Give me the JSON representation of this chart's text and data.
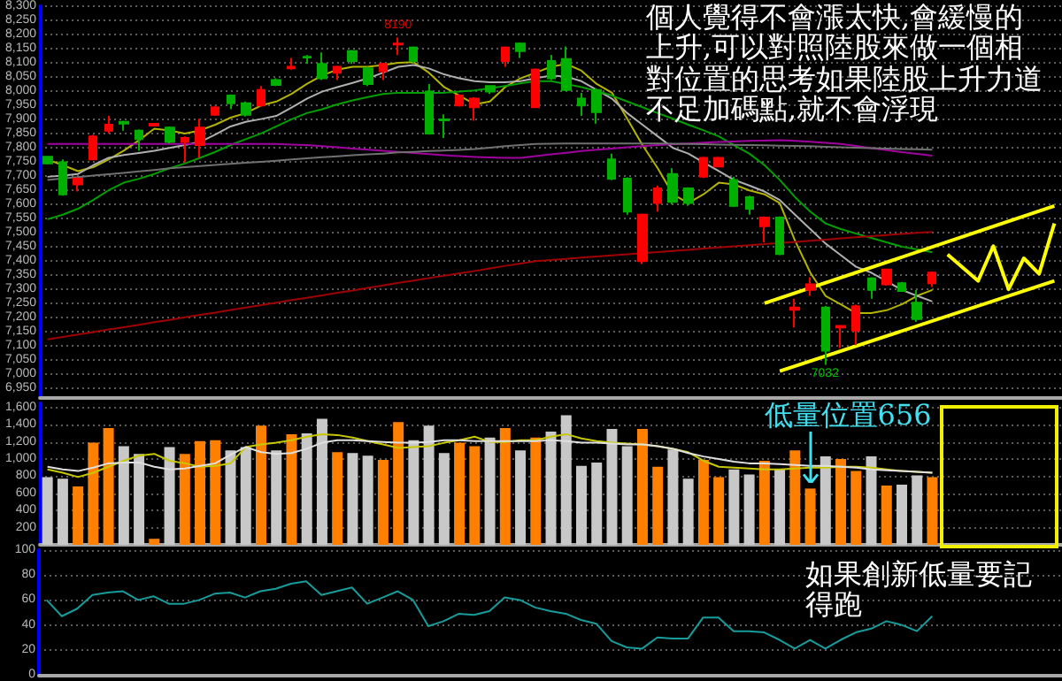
{
  "chart_data": [
    {
      "type": "candlestick",
      "categories": [
        null,
        null,
        null,
        null,
        null,
        null,
        null,
        null,
        null,
        null,
        null,
        null,
        null,
        null,
        null,
        null,
        null,
        null,
        null,
        null,
        null,
        null,
        null,
        null,
        null,
        null,
        null,
        null,
        null,
        null,
        null,
        null,
        null,
        null,
        null,
        null,
        null,
        null,
        null,
        null,
        null,
        null,
        null,
        null,
        null,
        null,
        null,
        null,
        null,
        null,
        null,
        null,
        null,
        null,
        null,
        null,
        null,
        null,
        null,
        null,
        null,
        null,
        null,
        null,
        null,
        null,
        null
      ],
      "ohlc": [
        [
          7768,
          7770,
          7740,
          7744
        ],
        [
          7748,
          7758,
          7630,
          7635
        ],
        [
          7670,
          7695,
          7645,
          7690
        ],
        [
          7758,
          7845,
          7755,
          7840
        ],
        [
          7860,
          7912,
          7850,
          7881
        ],
        [
          7891,
          7895,
          7860,
          7885
        ],
        [
          7860,
          7865,
          7789,
          7830
        ],
        [
          7878,
          7886,
          7875,
          7884
        ],
        [
          7871,
          7875,
          7815,
          7820
        ],
        [
          7820,
          7840,
          7748,
          7834
        ],
        [
          7809,
          7902,
          7764,
          7871
        ],
        [
          7916,
          7948,
          7912,
          7942
        ],
        [
          7984,
          7988,
          7936,
          7957
        ],
        [
          7957,
          7963,
          7910,
          7916
        ],
        [
          7949,
          8018,
          7945,
          8004
        ],
        [
          8039,
          8045,
          8018,
          8022
        ],
        [
          8080,
          8117,
          8076,
          8086
        ],
        [
          8121,
          8127,
          8096,
          8119
        ],
        [
          8096,
          8137,
          8039,
          8045
        ],
        [
          8065,
          8090,
          8039,
          8086
        ],
        [
          8141,
          8145,
          8096,
          8106
        ],
        [
          8080,
          8086,
          8018,
          8025
        ],
        [
          8070,
          8100,
          8039,
          8096
        ],
        [
          8165,
          8190,
          8127,
          8168
        ],
        [
          8154,
          8158,
          8100,
          8106
        ],
        [
          7998,
          8025,
          7846,
          7850
        ],
        [
          7900,
          7918,
          7834,
          7897
        ],
        [
          7949,
          7988,
          7945,
          7984
        ],
        [
          7943,
          7978,
          7895,
          7973
        ],
        [
          8018,
          8020,
          7990,
          7998
        ],
        [
          8106,
          8158,
          8086,
          8154
        ],
        [
          8168,
          8172,
          8117,
          8141
        ],
        [
          7943,
          8080,
          7940,
          8076
        ],
        [
          8106,
          8127,
          8039,
          8045
        ],
        [
          8113,
          8158,
          8000,
          8004
        ],
        [
          7973,
          7994,
          7912,
          7949
        ],
        [
          8004,
          8010,
          7885,
          7926
        ],
        [
          7758,
          7779,
          7685,
          7690
        ],
        [
          7690,
          7695,
          7563,
          7574
        ],
        [
          7399,
          7567,
          7389,
          7563
        ],
        [
          7604,
          7666,
          7574,
          7656
        ],
        [
          7707,
          7727,
          7600,
          7608
        ],
        [
          7656,
          7660,
          7594,
          7604
        ],
        [
          7697,
          7768,
          7693,
          7764
        ],
        [
          7733,
          7768,
          7730,
          7764
        ],
        [
          7686,
          7697,
          7590,
          7594
        ],
        [
          7625,
          7630,
          7563,
          7584
        ],
        [
          7522,
          7557,
          7465,
          7553
        ],
        [
          7553,
          7557,
          7420,
          7424
        ],
        [
          7227,
          7266,
          7164,
          7235
        ],
        [
          7297,
          7342,
          7276,
          7317
        ],
        [
          7235,
          7240,
          7032,
          7082
        ],
        [
          7164,
          7172,
          7092,
          7170
        ],
        [
          7153,
          7245,
          7102,
          7239
        ],
        [
          7338,
          7342,
          7266,
          7297
        ],
        [
          7317,
          7372,
          7312,
          7369
        ],
        [
          7321,
          7325,
          7290,
          7293
        ],
        [
          7252,
          7297,
          7184,
          7194
        ],
        [
          7321,
          7362,
          7307,
          7358
        ],
        null,
        null,
        null,
        null,
        null,
        null,
        null,
        null
      ],
      "series": [
        {
          "type": "line",
          "color": "#b4b400",
          "values": [
            7758,
            7738,
            7717,
            7731,
            7758,
            7789,
            7826,
            7867,
            7861,
            7850,
            7861,
            7881,
            7906,
            7922,
            7949,
            7963,
            7990,
            8025,
            8055,
            8076,
            8086,
            8086,
            8092,
            8100,
            8102,
            8065,
            8014,
            7984,
            7953,
            7963,
            8014,
            8045,
            8065,
            8086,
            8096,
            8072,
            8025,
            7994,
            7902,
            7809,
            7727,
            7635,
            7604,
            7635,
            7676,
            7670,
            7649,
            7635,
            7604,
            7471,
            7358,
            7276,
            7246,
            7215,
            7215,
            7225,
            7246,
            7276,
            7297,
            null,
            null,
            null,
            null,
            null,
            null,
            null,
            null
          ]
        },
        {
          "type": "line",
          "color": "#b0b0b0",
          "values": [
            7697,
            7701,
            7707,
            7738,
            7764,
            7774,
            7781,
            7789,
            7799,
            7809,
            7820,
            7846,
            7875,
            7891,
            7901,
            7912,
            7942,
            7973,
            7998,
            8014,
            8029,
            8045,
            8065,
            8086,
            8092,
            8080,
            8059,
            8045,
            8035,
            8031,
            8031,
            8035,
            8045,
            8055,
            8051,
            8035,
            8004,
            7973,
            7922,
            7881,
            7840,
            7799,
            7779,
            7748,
            7717,
            7686,
            7666,
            7645,
            7615,
            7563,
            7512,
            7461,
            7420,
            7379,
            7358,
            7328,
            7297,
            7276,
            7256,
            null,
            null,
            null,
            null,
            null,
            null,
            null,
            null
          ]
        },
        {
          "type": "line",
          "color": "#00a000",
          "values": [
            7547,
            7563,
            7584,
            7615,
            7649,
            7676,
            7690,
            7707,
            7727,
            7744,
            7764,
            7785,
            7809,
            7830,
            7850,
            7875,
            7900,
            7922,
            7936,
            7953,
            7967,
            7979,
            7990,
            7994,
            7994,
            7994,
            7994,
            7998,
            8002,
            8010,
            8018,
            8027,
            8035,
            8035,
            8025,
            8014,
            8000,
            7984,
            7963,
            7943,
            7922,
            7902,
            7881,
            7861,
            7840,
            7809,
            7779,
            7738,
            7686,
            7625,
            7574,
            7532,
            7512,
            7496,
            7481,
            7465,
            7450,
            7440,
            7430,
            null,
            null,
            null,
            null,
            null,
            null,
            null,
            null
          ]
        },
        {
          "type": "line",
          "color": "#a000a0",
          "values": [
            7813,
            7813,
            7813,
            7813,
            7813,
            7813,
            7813,
            7813,
            7813,
            7813,
            7813,
            7813,
            7813,
            7813,
            7813,
            7813,
            7811,
            7809,
            7805,
            7801,
            7797,
            7793,
            7789,
            7785,
            7781,
            7777,
            7773,
            7770,
            7767,
            7765,
            7764,
            7764,
            7770,
            7776,
            7782,
            7788,
            7793,
            7797,
            7801,
            7805,
            7809,
            7812,
            7815,
            7818,
            7820,
            7822,
            7824,
            7825,
            7826,
            7824,
            7821,
            7817,
            7813,
            7806,
            7798,
            7791,
            7784,
            7778,
            7772,
            null,
            null,
            null,
            null,
            null,
            null,
            null,
            null
          ]
        },
        {
          "type": "line",
          "color": "#707070",
          "values": [
            7686,
            7691,
            7696,
            7701,
            7706,
            7711,
            7716,
            7721,
            7727,
            7731,
            7735,
            7739,
            7743,
            7747,
            7750,
            7754,
            7758,
            7762,
            7766,
            7769,
            7773,
            7776,
            7779,
            7783,
            7785,
            7788,
            7790,
            7792,
            7795,
            7800,
            7805,
            7809,
            7813,
            7814,
            7815,
            7815,
            7815,
            7815,
            7815,
            7815,
            7815,
            7814,
            7813,
            7812,
            7811,
            7810,
            7809,
            7808,
            7807,
            7806,
            7805,
            7803,
            7801,
            7800,
            7798,
            7797,
            7795,
            7794,
            7793,
            null,
            null,
            null,
            null,
            null,
            null,
            null,
            null
          ]
        },
        {
          "type": "line",
          "color": "#a00000",
          "values": [
            7122,
            7131,
            7139,
            7148,
            7157,
            7165,
            7174,
            7183,
            7191,
            7200,
            7209,
            7217,
            7226,
            7235,
            7243,
            7252,
            7261,
            7269,
            7278,
            7287,
            7295,
            7304,
            7313,
            7322,
            7330,
            7339,
            7347,
            7356,
            7364,
            7373,
            7382,
            7390,
            7399,
            7403,
            7407,
            7411,
            7415,
            7419,
            7423,
            7427,
            7431,
            7435,
            7439,
            7443,
            7447,
            7451,
            7455,
            7459,
            7463,
            7467,
            7471,
            7475,
            7479,
            7483,
            7487,
            7491,
            7495,
            7499,
            7502,
            null,
            null,
            null,
            null,
            null,
            null,
            null,
            null
          ]
        },
        {
          "type": "line",
          "color": "#ffff00",
          "values": [
            null,
            null,
            null,
            null,
            null,
            null,
            null,
            null,
            null,
            null,
            null,
            null,
            null,
            null,
            null,
            null,
            null,
            null,
            null,
            null,
            null,
            null,
            null,
            null,
            null,
            null,
            null,
            null,
            null,
            null,
            null,
            null,
            null,
            null,
            null,
            null,
            null,
            null,
            null,
            null,
            null,
            null,
            null,
            null,
            null,
            null,
            null,
            7250,
            null,
            null,
            null,
            null,
            null,
            null,
            null,
            null,
            null,
            null,
            null,
            null,
            null,
            null,
            null,
            null,
            null,
            null,
            7594
          ]
        },
        {
          "type": "line",
          "color": "#ffff00",
          "values": [
            null,
            null,
            null,
            null,
            null,
            null,
            null,
            null,
            null,
            null,
            null,
            null,
            null,
            null,
            null,
            null,
            null,
            null,
            null,
            null,
            null,
            null,
            null,
            null,
            null,
            null,
            null,
            null,
            null,
            null,
            null,
            null,
            null,
            null,
            null,
            null,
            null,
            null,
            null,
            null,
            null,
            null,
            null,
            null,
            null,
            null,
            null,
            null,
            7010,
            null,
            null,
            null,
            null,
            null,
            null,
            null,
            null,
            null,
            null,
            null,
            null,
            null,
            null,
            null,
            null,
            null,
            7329
          ]
        },
        {
          "type": "line",
          "color": "#ffff00",
          "values": [
            null,
            null,
            null,
            null,
            null,
            null,
            null,
            null,
            null,
            null,
            null,
            null,
            null,
            null,
            null,
            null,
            null,
            null,
            null,
            null,
            null,
            null,
            null,
            null,
            null,
            null,
            null,
            null,
            null,
            null,
            null,
            null,
            null,
            null,
            null,
            null,
            null,
            null,
            null,
            null,
            null,
            null,
            null,
            null,
            null,
            null,
            null,
            null,
            null,
            null,
            null,
            null,
            null,
            null,
            null,
            null,
            null,
            null,
            null,
            7422,
            null,
            7329,
            7452,
            7299,
            7409,
            7354,
            7532
          ]
        }
      ],
      "ylim": [
        6915,
        8300
      ],
      "yticks": [
        {
          "value": 6950,
          "label": "6,950"
        },
        {
          "value": 7000,
          "label": "7,000"
        },
        {
          "value": 7050,
          "label": "7,050"
        },
        {
          "value": 7100,
          "label": "7,100"
        },
        {
          "value": 7150,
          "label": "7,150"
        },
        {
          "value": 7200,
          "label": "7,200"
        },
        {
          "value": 7250,
          "label": "7,250"
        },
        {
          "value": 7300,
          "label": "7,300"
        },
        {
          "value": 7350,
          "label": "7,350"
        },
        {
          "value": 7400,
          "label": "7,400"
        },
        {
          "value": 7450,
          "label": "7,450"
        },
        {
          "value": 7500,
          "label": "7,500"
        },
        {
          "value": 7550,
          "label": "7,550"
        },
        {
          "value": 7600,
          "label": "7,600"
        },
        {
          "value": 7650,
          "label": "7,650"
        },
        {
          "value": 7700,
          "label": "7,700"
        },
        {
          "value": 7750,
          "label": "7,750"
        },
        {
          "value": 7800,
          "label": "7,800"
        },
        {
          "value": 7850,
          "label": "7,850"
        },
        {
          "value": 7900,
          "label": "7,900"
        },
        {
          "value": 7950,
          "label": "7,950"
        },
        {
          "value": 8000,
          "label": "8,000"
        },
        {
          "value": 8050,
          "label": "8,050"
        },
        {
          "value": 8100,
          "label": "8,100"
        },
        {
          "value": 8150,
          "label": "8,150"
        },
        {
          "value": 8200,
          "label": "8,200"
        },
        {
          "value": 8250,
          "label": "8,250"
        },
        {
          "value": 8300,
          "label": "8,300"
        }
      ],
      "grid": "y",
      "tick_labels": "y",
      "annotations": [
        "個人覺得不會漲太快,會緩慢的上升,可以對照陸股來做一個相對位置的思考如果陸股上升力道不足加碼點,就不會浮現",
        {
          "text": "8190",
          "y": 8190
        },
        {
          "text": "7032",
          "y": 7032
        }
      ]
    },
    {
      "type": "bar",
      "categories": [
        null,
        null,
        null,
        null,
        null,
        null,
        null,
        null,
        null,
        null,
        null,
        null,
        null,
        null,
        null,
        null,
        null,
        null,
        null,
        null,
        null,
        null,
        null,
        null,
        null,
        null,
        null,
        null,
        null,
        null,
        null,
        null,
        null,
        null,
        null,
        null,
        null,
        null,
        null,
        null,
        null,
        null,
        null,
        null,
        null,
        null,
        null,
        null,
        null,
        null,
        null,
        null,
        null,
        null,
        null,
        null,
        null,
        null,
        null,
        null,
        null,
        null,
        null,
        null,
        null,
        null,
        null
      ],
      "values": [
        790,
        770,
        680,
        1190,
        1360,
        1150,
        1060,
        70,
        1140,
        1060,
        1210,
        1220,
        1100,
        1140,
        1390,
        1100,
        1290,
        1300,
        1470,
        1080,
        1070,
        1040,
        990,
        1430,
        1220,
        1390,
        1070,
        1190,
        1150,
        1250,
        1360,
        1100,
        1250,
        1320,
        1510,
        920,
        960,
        1350,
        1150,
        1350,
        910,
        1110,
        770,
        990,
        790,
        880,
        820,
        980,
        880,
        1100,
        656,
        1030,
        1000,
        860,
        1030,
        690,
        700,
        810,
        790,
        null,
        null,
        null,
        null,
        null,
        null,
        null,
        null
      ],
      "colors": [
        "#c8c8c8",
        "#c8c8c8",
        "#ff8000",
        "#ff8000",
        "#ff8000",
        "#c8c8c8",
        "#c8c8c8",
        "#ff8000",
        "#c8c8c8",
        "#ff8000",
        "#ff8000",
        "#ff8000",
        "#c8c8c8",
        "#c8c8c8",
        "#ff8000",
        "#c8c8c8",
        "#ff8000",
        "#c8c8c8",
        "#c8c8c8",
        "#ff8000",
        "#c8c8c8",
        "#c8c8c8",
        "#ff8000",
        "#ff8000",
        "#c8c8c8",
        "#c8c8c8",
        "#c8c8c8",
        "#ff8000",
        "#ff8000",
        "#c8c8c8",
        "#ff8000",
        "#c8c8c8",
        "#ff8000",
        "#c8c8c8",
        "#c8c8c8",
        "#c8c8c8",
        "#c8c8c8",
        "#c8c8c8",
        "#c8c8c8",
        "#ff8000",
        "#ff8000",
        "#c8c8c8",
        "#c8c8c8",
        "#ff8000",
        "#ff8000",
        "#c8c8c8",
        "#c8c8c8",
        "#ff8000",
        "#c8c8c8",
        "#ff8000",
        "#ff8000",
        "#c8c8c8",
        "#ff8000",
        "#ff8000",
        "#c8c8c8",
        "#ff8000",
        "#c8c8c8",
        "#c8c8c8",
        "#ff8000",
        null,
        null,
        null,
        null,
        null,
        null,
        null,
        null
      ],
      "series": [
        {
          "type": "line",
          "color": "#c8c800",
          "values": [
            880,
            840,
            790,
            840,
            910,
            980,
            1040,
            1060,
            980,
            950,
            910,
            920,
            950,
            1140,
            1170,
            1190,
            1220,
            1260,
            1290,
            1280,
            1250,
            1210,
            1170,
            1130,
            1140,
            1150,
            1190,
            1220,
            1260,
            1200,
            1200,
            1220,
            1220,
            1260,
            1290,
            1240,
            1210,
            1190,
            1180,
            1170,
            1150,
            1120,
            1080,
            980,
            910,
            900,
            890,
            880,
            880,
            890,
            900,
            900,
            910,
            910,
            900,
            880,
            860,
            850,
            840,
            null,
            null,
            null,
            null,
            null,
            null,
            null,
            null
          ]
        },
        {
          "type": "line",
          "color": "#e0e0e0",
          "values": [
            910,
            880,
            860,
            900,
            950,
            960,
            960,
            910,
            880,
            890,
            920,
            950,
            1050,
            1140,
            1080,
            1060,
            1070,
            1120,
            1190,
            1220,
            1220,
            1210,
            1200,
            1190,
            1190,
            1200,
            1220,
            1220,
            1210,
            1210,
            1210,
            1210,
            1210,
            1220,
            1210,
            1190,
            1190,
            1180,
            1170,
            1170,
            1150,
            1120,
            1070,
            1030,
            1000,
            970,
            950,
            950,
            940,
            930,
            920,
            920,
            910,
            900,
            880,
            870,
            860,
            850,
            840,
            null,
            null,
            null,
            null,
            null,
            null,
            null,
            null
          ]
        }
      ],
      "ylim": [
        0,
        1650
      ],
      "yticks": [
        200,
        400,
        600,
        800,
        {
          "value": 1000,
          "label": "1,000"
        },
        {
          "value": 1200,
          "label": "1,200"
        },
        {
          "value": 1400,
          "label": "1,400"
        },
        {
          "value": 1600,
          "label": "1,600"
        }
      ],
      "grid": "y",
      "tick_labels": "y",
      "annotations": [
        {
          "text": "低量位置656",
          "y": 656
        }
      ]
    },
    {
      "type": "line",
      "categories": [
        null,
        null,
        null,
        null,
        null,
        null,
        null,
        null,
        null,
        null,
        null,
        null,
        null,
        null,
        null,
        null,
        null,
        null,
        null,
        null,
        null,
        null,
        null,
        null,
        null,
        null,
        null,
        null,
        null,
        null,
        null,
        null,
        null,
        null,
        null,
        null,
        null,
        null,
        null,
        null,
        null,
        null,
        null,
        null,
        null,
        null,
        null,
        null,
        null,
        null,
        null,
        null,
        null,
        null,
        null,
        null,
        null,
        null,
        null,
        null,
        null,
        null,
        null,
        null,
        null,
        null,
        null
      ],
      "series": [
        {
          "color": "#179c9c",
          "values": [
            60,
            47,
            53,
            64,
            66,
            67,
            60,
            63,
            57,
            57,
            60,
            65,
            66,
            62,
            67,
            69,
            73,
            75,
            64,
            67,
            70,
            57,
            62,
            67,
            60,
            39,
            43,
            49,
            48,
            51,
            62,
            60,
            54,
            51,
            49,
            44,
            41,
            27,
            22,
            21,
            30,
            29,
            29,
            46,
            46,
            35,
            35,
            34,
            28,
            21,
            28,
            21,
            28,
            34,
            37,
            43,
            40,
            35,
            47,
            null,
            null,
            null,
            null,
            null,
            null,
            null,
            null
          ]
        }
      ],
      "ylim": [
        0,
        100
      ],
      "yticks": [
        0,
        20,
        40,
        60,
        80,
        100
      ],
      "grid": "y",
      "tick_labels": "y",
      "annotations": [
        "如果創新低量要記得跑"
      ]
    }
  ]
}
